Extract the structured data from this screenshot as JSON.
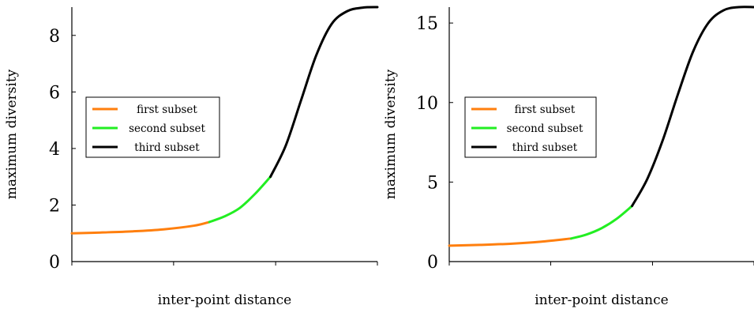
{
  "chart_data": [
    {
      "type": "line",
      "xlabel": "inter-point distance",
      "ylabel": "maximum diversity",
      "ylim": [
        0,
        9
      ],
      "yticks": [
        0,
        2,
        4,
        6,
        8
      ],
      "xlim": [
        0,
        1
      ],
      "xticks": [
        0,
        0.333,
        0.667,
        1
      ],
      "xtick_labels_shown": false,
      "legend_position": "center-left",
      "series": [
        {
          "name": "first subset",
          "color": "#ff7f0e",
          "x": [
            0,
            0.1,
            0.2,
            0.3,
            0.4,
            0.45
          ],
          "y": [
            1.0,
            1.03,
            1.07,
            1.14,
            1.27,
            1.4
          ]
        },
        {
          "name": "second subset",
          "color": "#22ee22",
          "x": [
            0.45,
            0.5,
            0.55,
            0.6,
            0.65
          ],
          "y": [
            1.4,
            1.6,
            1.9,
            2.4,
            3.0
          ]
        },
        {
          "name": "third subset",
          "color": "#000000",
          "x": [
            0.65,
            0.7,
            0.75,
            0.8,
            0.85,
            0.9,
            0.95,
            1.0
          ],
          "y": [
            3.0,
            4.1,
            5.7,
            7.3,
            8.4,
            8.85,
            8.98,
            9.0
          ]
        }
      ]
    },
    {
      "type": "line",
      "xlabel": "inter-point distance",
      "ylabel": "maximum diversity",
      "ylim": [
        0,
        16
      ],
      "yticks": [
        0,
        5,
        10,
        15
      ],
      "xlim": [
        0,
        1
      ],
      "xticks": [
        0,
        0.333,
        0.667,
        1
      ],
      "xtick_labels_shown": false,
      "legend_position": "upper-left",
      "series": [
        {
          "name": "first subset",
          "color": "#ff7f0e",
          "x": [
            0,
            0.1,
            0.2,
            0.3,
            0.4
          ],
          "y": [
            1.0,
            1.05,
            1.12,
            1.25,
            1.45
          ]
        },
        {
          "name": "second subset",
          "color": "#22ee22",
          "x": [
            0.4,
            0.45,
            0.5,
            0.55,
            0.6
          ],
          "y": [
            1.45,
            1.7,
            2.1,
            2.7,
            3.5
          ]
        },
        {
          "name": "third subset",
          "color": "#000000",
          "x": [
            0.6,
            0.65,
            0.7,
            0.75,
            0.8,
            0.85,
            0.9,
            0.95,
            1.0
          ],
          "y": [
            3.5,
            5.2,
            7.6,
            10.5,
            13.2,
            15.0,
            15.8,
            16.0,
            16.0
          ]
        }
      ]
    }
  ]
}
